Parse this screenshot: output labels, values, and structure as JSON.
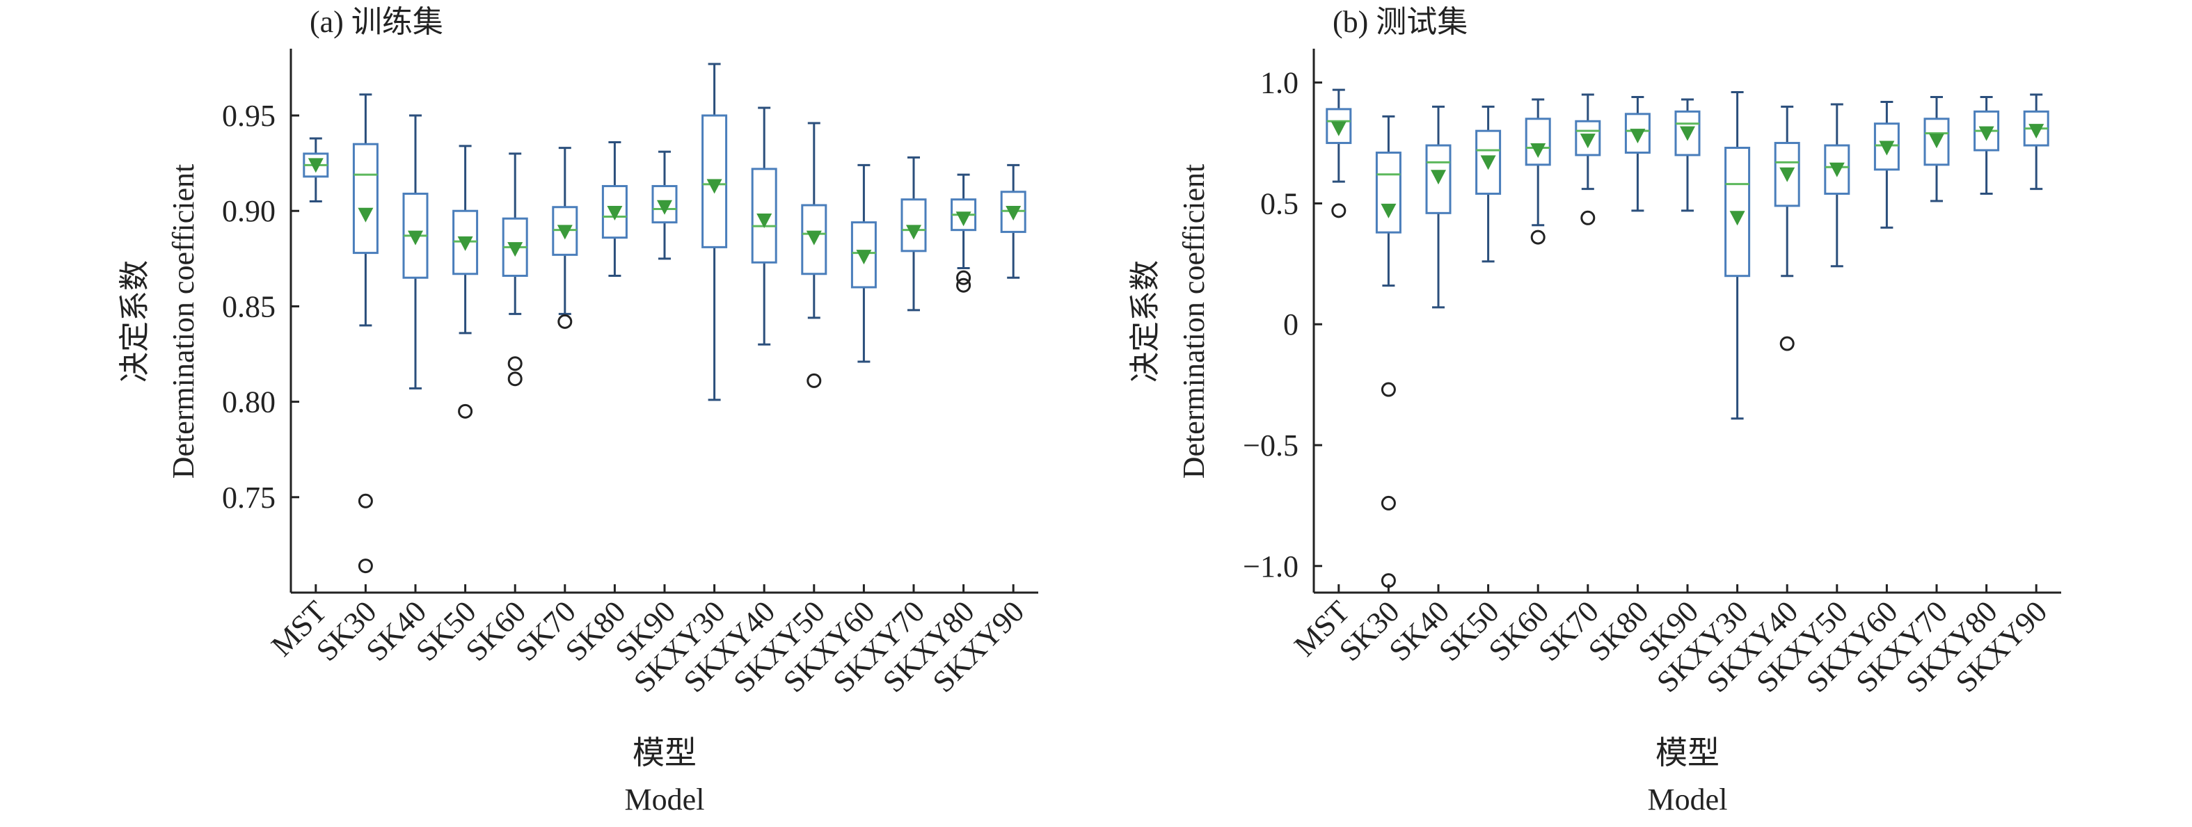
{
  "colors": {
    "box": "#4a7ebb",
    "whisker": "#2b4f7c",
    "median": "#5cb85c",
    "mean": "#3a9a3a",
    "outlier": "#222222",
    "axis": "#222222"
  },
  "chart_data": [
    {
      "type": "box",
      "title": "(a) 训练集",
      "xlabel_cn": "模型",
      "xlabel_en": "Model",
      "ylabel_cn": "决定系数",
      "ylabel_en": "Determination coefficient",
      "ylim": [
        0.7,
        0.985
      ],
      "yticks": [
        0.75,
        0.8,
        0.85,
        0.9,
        0.95
      ],
      "ytick_labels": [
        "0.75",
        "0.80",
        "0.85",
        "0.90",
        "0.95"
      ],
      "categories": [
        "MST",
        "SK30",
        "SK40",
        "SK50",
        "SK60",
        "SK70",
        "SK80",
        "SK90",
        "SKXY30",
        "SKXY40",
        "SKXY50",
        "SKXY60",
        "SKXY70",
        "SKXY80",
        "SKXY90"
      ],
      "boxes": [
        {
          "min": 0.905,
          "q1": 0.918,
          "median": 0.924,
          "q3": 0.93,
          "max": 0.938,
          "mean": 0.924,
          "outliers": []
        },
        {
          "min": 0.84,
          "q1": 0.878,
          "median": 0.919,
          "q3": 0.935,
          "max": 0.961,
          "mean": 0.898,
          "outliers": [
            0.748,
            0.714
          ]
        },
        {
          "min": 0.807,
          "q1": 0.865,
          "median": 0.887,
          "q3": 0.909,
          "max": 0.95,
          "mean": 0.886,
          "outliers": []
        },
        {
          "min": 0.836,
          "q1": 0.867,
          "median": 0.884,
          "q3": 0.9,
          "max": 0.934,
          "mean": 0.883,
          "outliers": [
            0.795
          ]
        },
        {
          "min": 0.846,
          "q1": 0.866,
          "median": 0.881,
          "q3": 0.896,
          "max": 0.93,
          "mean": 0.88,
          "outliers": [
            0.82,
            0.812
          ]
        },
        {
          "min": 0.846,
          "q1": 0.877,
          "median": 0.89,
          "q3": 0.902,
          "max": 0.933,
          "mean": 0.889,
          "outliers": [
            0.842
          ]
        },
        {
          "min": 0.866,
          "q1": 0.886,
          "median": 0.897,
          "q3": 0.913,
          "max": 0.936,
          "mean": 0.899,
          "outliers": []
        },
        {
          "min": 0.875,
          "q1": 0.894,
          "median": 0.901,
          "q3": 0.913,
          "max": 0.931,
          "mean": 0.902,
          "outliers": []
        },
        {
          "min": 0.801,
          "q1": 0.881,
          "median": 0.914,
          "q3": 0.95,
          "max": 0.977,
          "mean": 0.913,
          "outliers": []
        },
        {
          "min": 0.83,
          "q1": 0.873,
          "median": 0.892,
          "q3": 0.922,
          "max": 0.954,
          "mean": 0.895,
          "outliers": []
        },
        {
          "min": 0.844,
          "q1": 0.867,
          "median": 0.888,
          "q3": 0.903,
          "max": 0.946,
          "mean": 0.886,
          "outliers": [
            0.811
          ]
        },
        {
          "min": 0.821,
          "q1": 0.86,
          "median": 0.878,
          "q3": 0.894,
          "max": 0.924,
          "mean": 0.876,
          "outliers": []
        },
        {
          "min": 0.848,
          "q1": 0.879,
          "median": 0.89,
          "q3": 0.906,
          "max": 0.928,
          "mean": 0.889,
          "outliers": []
        },
        {
          "min": 0.87,
          "q1": 0.89,
          "median": 0.898,
          "q3": 0.906,
          "max": 0.919,
          "mean": 0.896,
          "outliers": [
            0.865,
            0.861
          ]
        },
        {
          "min": 0.865,
          "q1": 0.889,
          "median": 0.9,
          "q3": 0.91,
          "max": 0.924,
          "mean": 0.899,
          "outliers": []
        }
      ]
    },
    {
      "type": "box",
      "title": "(b) 测试集",
      "xlabel_cn": "模型",
      "xlabel_en": "Model",
      "ylabel_cn": "决定系数",
      "ylabel_en": "Determination coefficient",
      "ylim": [
        -1.11,
        1.14
      ],
      "yticks": [
        -1.0,
        -0.5,
        0,
        0.5,
        1.0
      ],
      "ytick_labels": [
        "−1.0",
        "−0.5",
        "0",
        "0.5",
        "1.0"
      ],
      "categories": [
        "MST",
        "SK30",
        "SK40",
        "SK50",
        "SK60",
        "SK70",
        "SK80",
        "SK90",
        "SKXY30",
        "SKXY40",
        "SKXY50",
        "SKXY60",
        "SKXY70",
        "SKXY80",
        "SKXY90"
      ],
      "boxes": [
        {
          "min": 0.59,
          "q1": 0.75,
          "median": 0.84,
          "q3": 0.89,
          "max": 0.97,
          "mean": 0.81,
          "outliers": [
            0.47
          ]
        },
        {
          "min": 0.16,
          "q1": 0.38,
          "median": 0.62,
          "q3": 0.71,
          "max": 0.86,
          "mean": 0.47,
          "outliers": [
            -0.27,
            -0.74,
            -1.06
          ]
        },
        {
          "min": 0.07,
          "q1": 0.46,
          "median": 0.67,
          "q3": 0.74,
          "max": 0.9,
          "mean": 0.61,
          "outliers": []
        },
        {
          "min": 0.26,
          "q1": 0.54,
          "median": 0.72,
          "q3": 0.8,
          "max": 0.9,
          "mean": 0.67,
          "outliers": []
        },
        {
          "min": 0.41,
          "q1": 0.66,
          "median": 0.73,
          "q3": 0.85,
          "max": 0.93,
          "mean": 0.72,
          "outliers": [
            0.36
          ]
        },
        {
          "min": 0.56,
          "q1": 0.7,
          "median": 0.8,
          "q3": 0.84,
          "max": 0.95,
          "mean": 0.76,
          "outliers": [
            0.44
          ]
        },
        {
          "min": 0.47,
          "q1": 0.71,
          "median": 0.8,
          "q3": 0.87,
          "max": 0.94,
          "mean": 0.78,
          "outliers": []
        },
        {
          "min": 0.47,
          "q1": 0.7,
          "median": 0.83,
          "q3": 0.88,
          "max": 0.93,
          "mean": 0.79,
          "outliers": []
        },
        {
          "min": -0.39,
          "q1": 0.2,
          "median": 0.58,
          "q3": 0.73,
          "max": 0.96,
          "mean": 0.44,
          "outliers": []
        },
        {
          "min": 0.2,
          "q1": 0.49,
          "median": 0.67,
          "q3": 0.75,
          "max": 0.9,
          "mean": 0.62,
          "outliers": [
            -0.08
          ]
        },
        {
          "min": 0.24,
          "q1": 0.54,
          "median": 0.65,
          "q3": 0.74,
          "max": 0.91,
          "mean": 0.64,
          "outliers": []
        },
        {
          "min": 0.4,
          "q1": 0.64,
          "median": 0.74,
          "q3": 0.83,
          "max": 0.92,
          "mean": 0.73,
          "outliers": []
        },
        {
          "min": 0.51,
          "q1": 0.66,
          "median": 0.79,
          "q3": 0.85,
          "max": 0.94,
          "mean": 0.76,
          "outliers": []
        },
        {
          "min": 0.54,
          "q1": 0.72,
          "median": 0.8,
          "q3": 0.88,
          "max": 0.94,
          "mean": 0.79,
          "outliers": []
        },
        {
          "min": 0.56,
          "q1": 0.74,
          "median": 0.81,
          "q3": 0.88,
          "max": 0.95,
          "mean": 0.8,
          "outliers": []
        }
      ]
    }
  ]
}
